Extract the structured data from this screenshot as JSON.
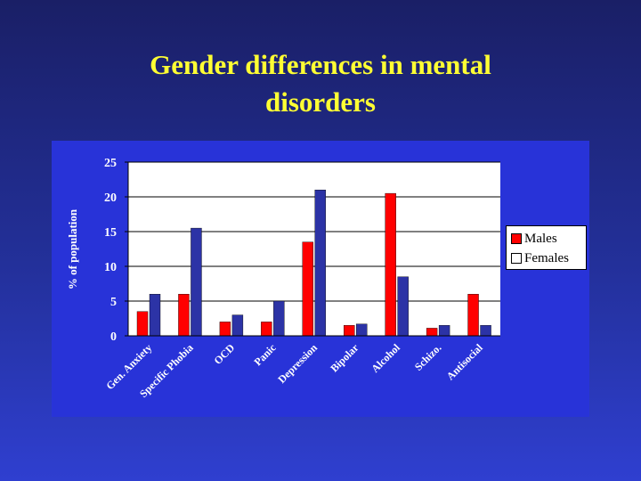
{
  "slide": {
    "title_line1": "Gender differences in mental",
    "title_line2": "disorders"
  },
  "colors": {
    "title": "#ffff33",
    "males": "#ff0000",
    "females": "#2c33a6",
    "plot_bg": "#ffffff",
    "panel_bg": "#2833d8"
  },
  "chart_data": {
    "type": "bar",
    "title": "Gender differences in mental disorders",
    "ylabel": "% of population",
    "xlabel": "",
    "ylim": [
      0,
      25
    ],
    "yticks": [
      0,
      5,
      10,
      15,
      20,
      25
    ],
    "categories": [
      "Gen. Anxiety",
      "Specific Phobia",
      "OCD",
      "Panic",
      "Depression",
      "Bipolar",
      "Alcohol",
      "Schizo.",
      "Antisocial"
    ],
    "series": [
      {
        "name": "Males",
        "values": [
          3.5,
          6,
          2,
          2,
          13.5,
          1.5,
          20.5,
          1.1,
          6
        ]
      },
      {
        "name": "Females",
        "values": [
          6,
          15.5,
          3,
          5,
          21,
          1.7,
          8.5,
          1.5,
          1.5
        ]
      }
    ],
    "grid": true,
    "legend_position": "right"
  }
}
